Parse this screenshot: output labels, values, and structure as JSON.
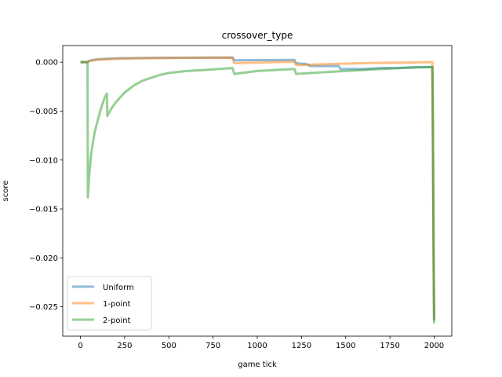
{
  "chart_data": {
    "type": "line",
    "title": "crossover_type",
    "xlabel": "game tick",
    "ylabel": "score",
    "xlim": [
      -100,
      2100
    ],
    "ylim": [
      -0.028,
      0.0017
    ],
    "xticks": [
      0,
      250,
      500,
      750,
      1000,
      1250,
      1500,
      1750,
      2000
    ],
    "xtick_labels": [
      "0",
      "250",
      "500",
      "750",
      "1000",
      "1250",
      "1500",
      "1750",
      "2000"
    ],
    "yticks": [
      0.0,
      -0.005,
      -0.01,
      -0.015,
      -0.02,
      -0.025
    ],
    "ytick_labels": [
      "0.000",
      "−0.005",
      "−0.010",
      "−0.015",
      "−0.020",
      "−0.025"
    ],
    "grid": false,
    "legend_position": "lower-left",
    "series": [
      {
        "name": "Uniform",
        "color": "#1f77b4",
        "x": [
          0,
          40,
          45,
          60,
          80,
          100,
          150,
          200,
          300,
          400,
          500,
          600,
          700,
          860,
          870,
          1000,
          1100,
          1210,
          1220,
          1280,
          1300,
          1460,
          1470,
          1600,
          1700,
          1800,
          1900,
          1990,
          1992,
          1994,
          1996,
          1998,
          2000
        ],
        "y": [
          0.0,
          0.0,
          0.0001,
          0.0002,
          0.00025,
          0.0003,
          0.00035,
          0.0004,
          0.00042,
          0.00044,
          0.00045,
          0.00046,
          0.00047,
          0.00048,
          0.0002,
          0.00021,
          0.00022,
          0.00023,
          -0.0001,
          -0.0002,
          -0.0004,
          -0.0004,
          -0.0007,
          -0.0007,
          -0.0006,
          -0.0006,
          -0.0005,
          -0.0005,
          -0.004,
          -0.01,
          -0.016,
          -0.022,
          -0.0264
        ]
      },
      {
        "name": "1-point",
        "color": "#ff7f0e",
        "x": [
          0,
          40,
          50,
          80,
          100,
          150,
          200,
          300,
          400,
          500,
          600,
          700,
          860,
          870,
          1000,
          1100,
          1210,
          1220,
          1400,
          1600,
          1800,
          1990,
          1992,
          1994,
          1996,
          1998,
          2000
        ],
        "y": [
          0.0,
          0.0,
          0.0001,
          0.0002,
          0.00025,
          0.0003,
          0.00035,
          0.0004,
          0.00042,
          0.00044,
          0.00045,
          0.00046,
          0.00047,
          -0.0001,
          -5e-05,
          0.0,
          5e-05,
          -0.0003,
          -0.0002,
          -0.0001,
          -5e-05,
          0.0,
          -0.004,
          -0.01,
          -0.016,
          -0.022,
          -0.0262
        ]
      },
      {
        "name": "2-point",
        "color": "#2ca02c",
        "x": [
          0,
          40,
          42,
          45,
          50,
          60,
          70,
          80,
          100,
          120,
          140,
          150,
          152,
          160,
          180,
          200,
          250,
          300,
          350,
          400,
          450,
          500,
          600,
          700,
          860,
          870,
          1000,
          1100,
          1210,
          1220,
          1400,
          1600,
          1800,
          1990,
          1992,
          1994,
          1996,
          1998,
          2000
        ],
        "y": [
          0.0,
          0.0,
          -0.0138,
          -0.013,
          -0.0115,
          -0.0095,
          -0.0083,
          -0.0072,
          -0.0058,
          -0.0045,
          -0.0035,
          -0.0032,
          -0.0055,
          -0.0052,
          -0.0046,
          -0.0041,
          -0.0031,
          -0.0024,
          -0.0019,
          -0.0016,
          -0.0013,
          -0.0011,
          -0.0009,
          -0.0008,
          -0.0006,
          -0.0012,
          -0.0009,
          -0.0008,
          -0.0007,
          -0.0012,
          -0.001,
          -0.0008,
          -0.0006,
          -0.0005,
          -0.004,
          -0.01,
          -0.016,
          -0.022,
          -0.0267
        ]
      }
    ]
  }
}
